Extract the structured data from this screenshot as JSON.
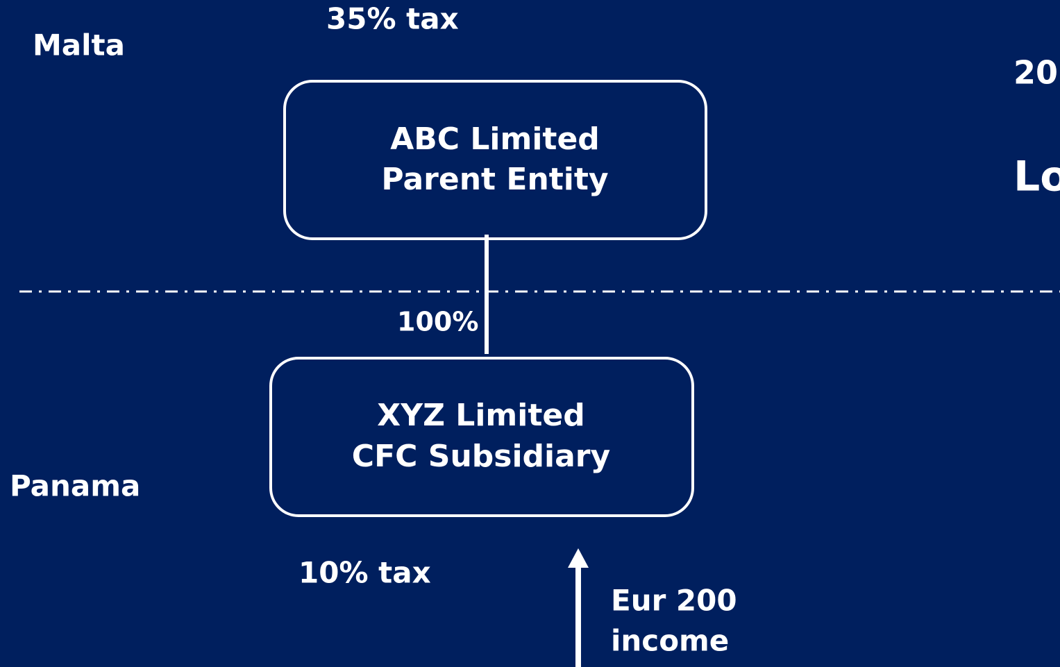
{
  "regions": {
    "top": "Malta",
    "bottom": "Panama"
  },
  "parent": {
    "tax": "35% tax",
    "name": "ABC Limited",
    "role": "Parent Entity"
  },
  "ownership": "100%",
  "subsidiary": {
    "tax": "10% tax",
    "name": "XYZ Limited",
    "role": "CFC Subsidiary"
  },
  "income": {
    "line1": "Eur 200",
    "line2": "income"
  },
  "side": {
    "line1": "20",
    "line2": "Lo"
  }
}
